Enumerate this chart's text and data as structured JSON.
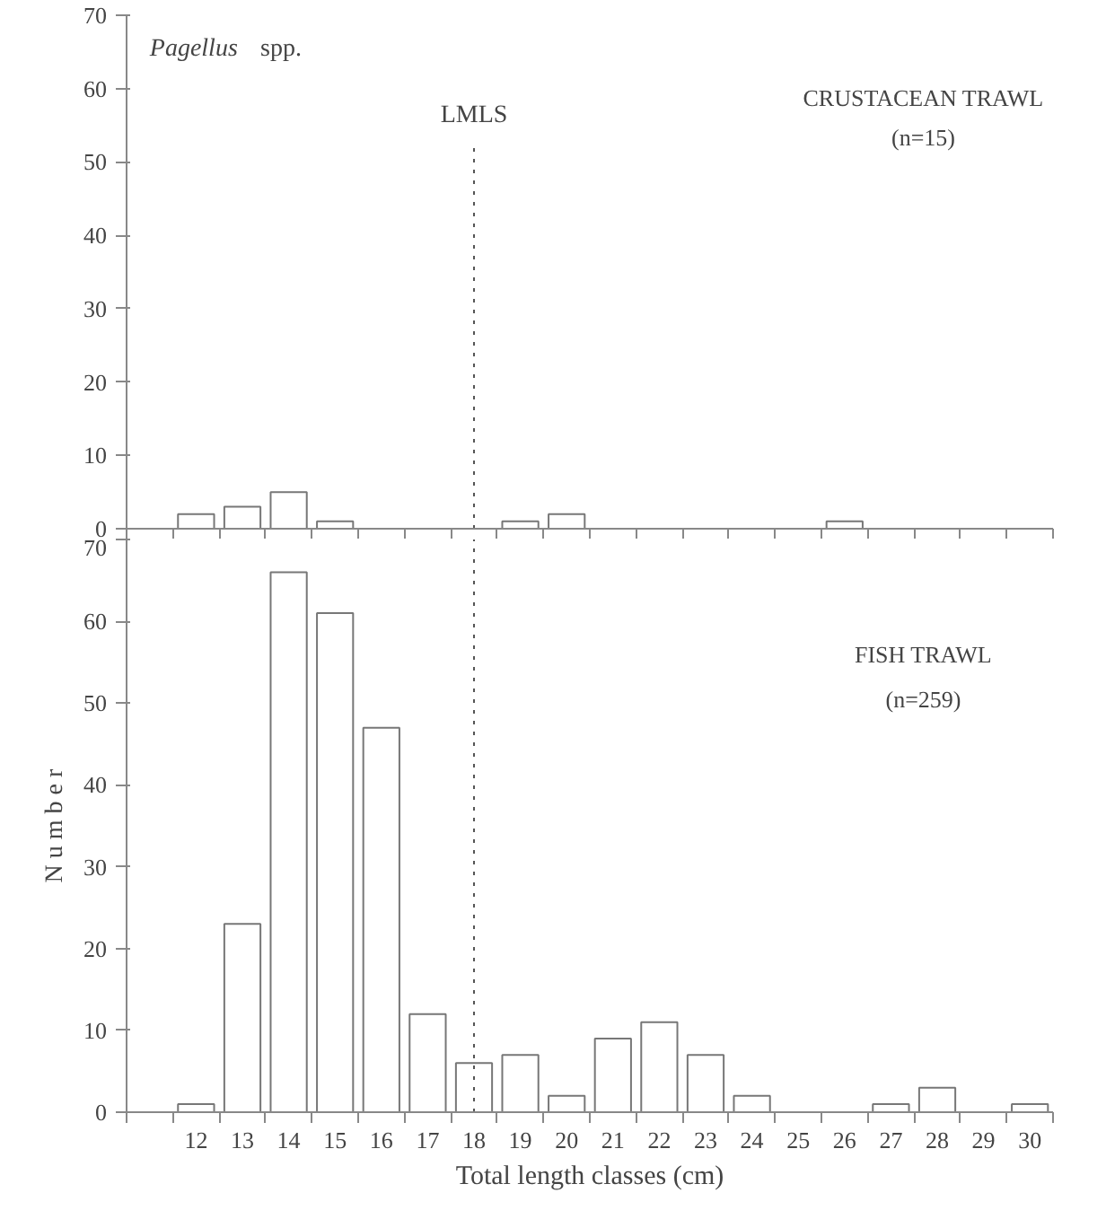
{
  "chart_data": [
    {
      "type": "bar",
      "title": "Pagellus spp.",
      "categories": [
        "12",
        "13",
        "14",
        "15",
        "16",
        "17",
        "18",
        "19",
        "20",
        "21",
        "22",
        "23",
        "24",
        "25",
        "26",
        "27",
        "28",
        "29",
        "30"
      ],
      "series": [
        {
          "color": "#777777",
          "values": [
            2,
            3,
            5,
            1,
            0,
            0,
            0,
            1,
            2,
            0,
            0,
            0,
            0,
            0,
            1,
            0,
            0,
            0,
            0
          ]
        }
      ],
      "ylim": [
        0,
        70
      ],
      "yticks": [
        0,
        10,
        20,
        30,
        40,
        50,
        60,
        70
      ],
      "grid": false,
      "tick_labels": "y",
      "annotations": [
        {
          "text": "CRUSTACEAN TRAWL"
        },
        {
          "text": "(n=15)"
        }
      ],
      "ref_lines": [
        {
          "axis": "x",
          "value": "18",
          "label": "LMLS",
          "line_style": "dotted"
        }
      ]
    },
    {
      "type": "bar",
      "ylabel": "N u m b e r",
      "xlabel": "Total length classes (cm)",
      "categories": [
        "12",
        "13",
        "14",
        "15",
        "16",
        "17",
        "18",
        "19",
        "20",
        "21",
        "22",
        "23",
        "24",
        "25",
        "26",
        "27",
        "28",
        "29",
        "30"
      ],
      "series": [
        {
          "color": "#777777",
          "values": [
            1,
            23,
            66,
            61,
            47,
            12,
            6,
            7,
            2,
            9,
            11,
            7,
            2,
            0,
            0,
            1,
            3,
            0,
            1
          ]
        }
      ],
      "ylim": [
        0,
        70
      ],
      "yticks": [
        0,
        10,
        20,
        30,
        40,
        50,
        60,
        70
      ],
      "grid": false,
      "annotations": [
        {
          "text": "FISH TRAWL"
        },
        {
          "text": "(n=259)"
        }
      ],
      "ref_lines": [
        {
          "axis": "x",
          "value": "18",
          "label": null,
          "line_style": "dotted"
        }
      ]
    }
  ]
}
